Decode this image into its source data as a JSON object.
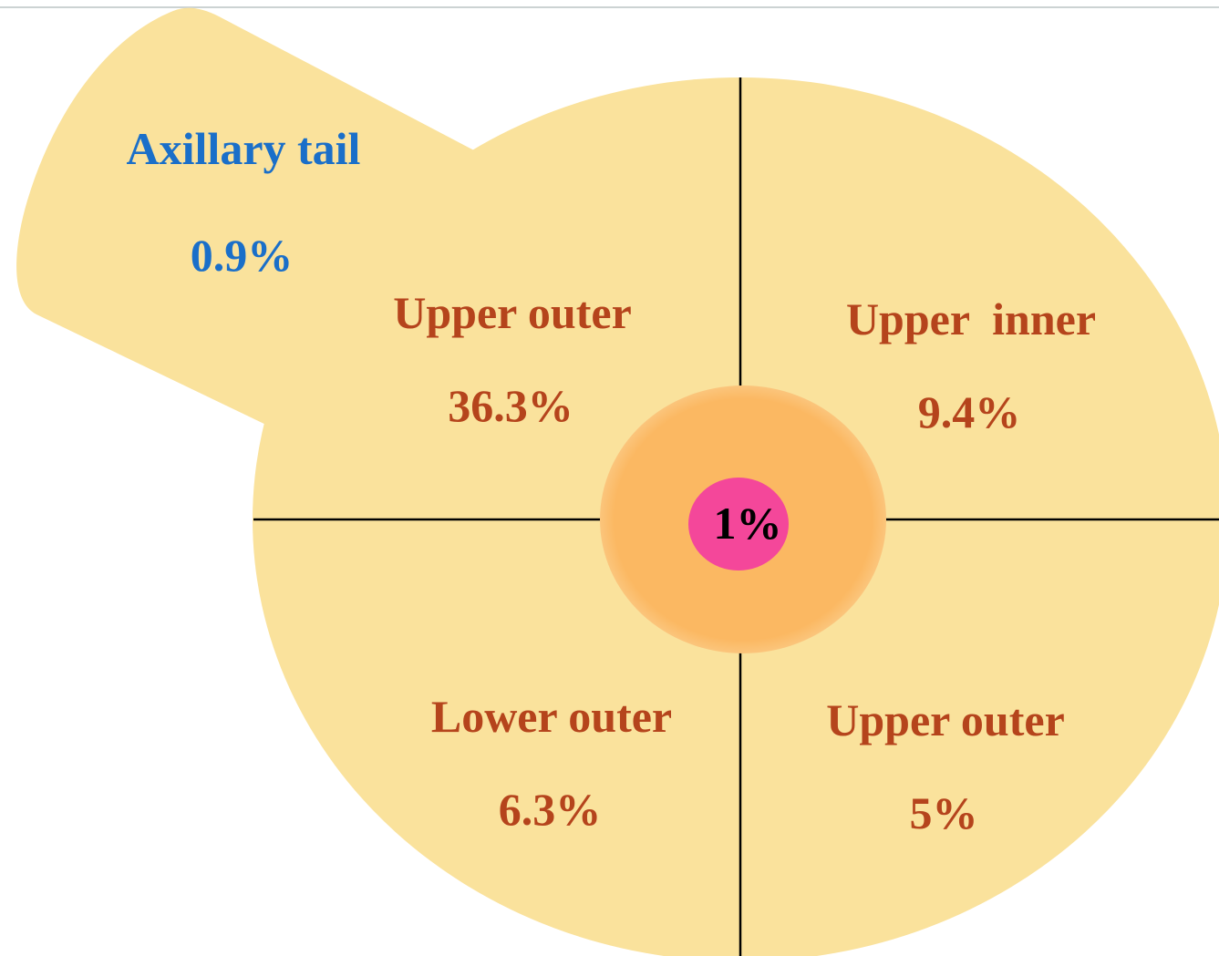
{
  "regions": [
    {
      "label": "Axillary tail",
      "value": "0.9%"
    },
    {
      "label": "Upper outer",
      "value": "36.3%"
    },
    {
      "label": "Upper  inner",
      "value": "9.4%"
    },
    {
      "label": "Lower outer",
      "value": "6.3%"
    },
    {
      "label": "Upper outer",
      "value": "5%"
    }
  ],
  "center": {
    "value": "1%"
  }
}
